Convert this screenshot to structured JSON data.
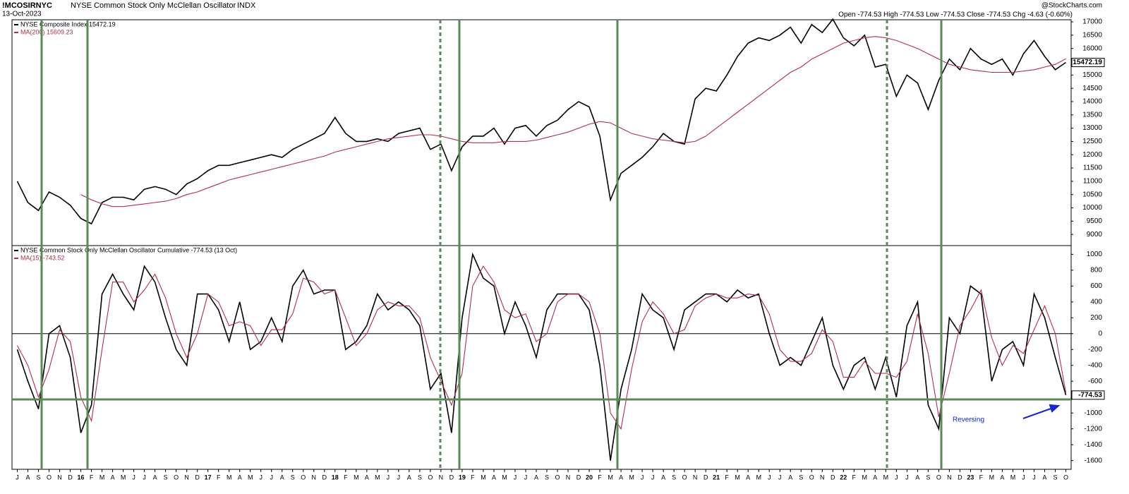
{
  "header": {
    "symbol": "!MCOSIRNYC",
    "name": "NYSE Common Stock Only McClellan Oscillator",
    "exchange": "INDX",
    "date": "13-Oct-2023",
    "source": "@StockCharts.com",
    "quote": "Open -774.53 High -774.53 Low -774.53 Close -774.53 Chg -4.63 (-0.60%)"
  },
  "chart_data": [
    {
      "type": "line",
      "series": [
        {
          "name": "NYSE Composite Index 15472.19",
          "color": "#000000",
          "last_value_label": "15472.19",
          "values": [
            11000,
            10200,
            9900,
            10600,
            10400,
            10100,
            9600,
            9400,
            10200,
            10400,
            10400,
            10300,
            10700,
            10800,
            10700,
            10500,
            10900,
            11100,
            11400,
            11600,
            11600,
            11700,
            11800,
            11900,
            12000,
            11900,
            12200,
            12400,
            12600,
            12800,
            13400,
            12800,
            12500,
            12500,
            12600,
            12500,
            12800,
            12900,
            13000,
            12200,
            12400,
            11400,
            12300,
            12700,
            12700,
            13000,
            12400,
            13000,
            13100,
            12700,
            13100,
            13300,
            13700,
            14000,
            13800,
            12700,
            10300,
            11300,
            11600,
            11900,
            12300,
            12800,
            12500,
            12400,
            14100,
            14500,
            14400,
            15000,
            15700,
            16200,
            16400,
            16300,
            16500,
            16800,
            16200,
            16900,
            16600,
            17100,
            16400,
            16100,
            16500,
            15300,
            15400,
            14200,
            15000,
            14700,
            13700,
            14800,
            15600,
            15200,
            16000,
            15600,
            15400,
            15600,
            15000,
            15800,
            16300,
            15700,
            15200,
            15472.19
          ]
        },
        {
          "name": "MA(200) 15609.23",
          "color": "#b0304a",
          "values": [
            null,
            null,
            null,
            null,
            null,
            null,
            10500,
            10300,
            10150,
            10050,
            10050,
            10100,
            10150,
            10200,
            10250,
            10350,
            10500,
            10600,
            10750,
            10900,
            11050,
            11150,
            11250,
            11350,
            11450,
            11550,
            11650,
            11750,
            11850,
            11950,
            12100,
            12200,
            12300,
            12400,
            12500,
            12600,
            12650,
            12700,
            12750,
            12750,
            12700,
            12600,
            12500,
            12450,
            12450,
            12450,
            12500,
            12500,
            12500,
            12550,
            12650,
            12750,
            12850,
            13000,
            13150,
            13250,
            13200,
            13000,
            12800,
            12700,
            12600,
            12550,
            12500,
            12450,
            12500,
            12700,
            13000,
            13300,
            13600,
            13900,
            14200,
            14500,
            14800,
            15100,
            15300,
            15600,
            15800,
            16000,
            16200,
            16300,
            16400,
            16450,
            16400,
            16300,
            16150,
            16000,
            15800,
            15600,
            15400,
            15300,
            15200,
            15150,
            15100,
            15100,
            15100,
            15150,
            15200,
            15300,
            15400,
            15609.23
          ]
        }
      ],
      "ylim": [
        8580,
        17080
      ],
      "yticks": [
        9000,
        9500,
        10000,
        10500,
        11000,
        11500,
        12000,
        12500,
        13000,
        13500,
        14000,
        14500,
        15000,
        15500,
        16000,
        16500,
        17000
      ]
    },
    {
      "type": "line",
      "categories": [
        "J",
        "A",
        "S",
        "O",
        "N",
        "D",
        "16",
        "F",
        "M",
        "A",
        "M",
        "J",
        "J",
        "A",
        "S",
        "O",
        "N",
        "D",
        "17",
        "F",
        "M",
        "A",
        "M",
        "J",
        "J",
        "A",
        "S",
        "O",
        "N",
        "D",
        "18",
        "F",
        "M",
        "A",
        "M",
        "J",
        "J",
        "A",
        "S",
        "O",
        "N",
        "D",
        "19",
        "F",
        "M",
        "A",
        "M",
        "J",
        "J",
        "A",
        "S",
        "O",
        "N",
        "D",
        "20",
        "F",
        "M",
        "A",
        "M",
        "J",
        "J",
        "A",
        "S",
        "O",
        "N",
        "D",
        "21",
        "F",
        "M",
        "A",
        "M",
        "J",
        "J",
        "A",
        "S",
        "O",
        "N",
        "D",
        "22",
        "F",
        "M",
        "A",
        "M",
        "J",
        "J",
        "A",
        "S",
        "O",
        "N",
        "D",
        "23",
        "F",
        "M",
        "A",
        "M",
        "J",
        "J",
        "A",
        "S",
        "O"
      ],
      "series": [
        {
          "name": "NYSE Common Stock Only McClellan Oscillator Cumulative -774.53 (13 Oct)",
          "color": "#000000",
          "last_value_label": "-774.53",
          "values": [
            -200,
            -600,
            -950,
            0,
            100,
            -300,
            -1250,
            -900,
            500,
            750,
            500,
            300,
            850,
            650,
            200,
            -200,
            -400,
            500,
            500,
            300,
            -100,
            400,
            -200,
            -100,
            200,
            -100,
            600,
            800,
            500,
            550,
            550,
            -200,
            -100,
            100,
            500,
            300,
            400,
            300,
            100,
            -700,
            -500,
            -1250,
            200,
            1000,
            700,
            600,
            0,
            400,
            100,
            -300,
            300,
            500,
            500,
            500,
            300,
            -400,
            -1600,
            -700,
            -200,
            500,
            300,
            200,
            -200,
            300,
            400,
            500,
            500,
            400,
            550,
            450,
            500,
            0,
            -400,
            -300,
            -400,
            -100,
            200,
            -400,
            -700,
            -400,
            -300,
            -700,
            -300,
            -800,
            100,
            400,
            -900,
            -1200,
            200,
            0,
            600,
            500,
            -600,
            -200,
            -100,
            -400,
            500,
            200,
            -300,
            -774.53
          ]
        },
        {
          "name": "MA(15) -743.52",
          "color": "#b0304a",
          "values": [
            -150,
            -400,
            -800,
            -450,
            50,
            -100,
            -800,
            -1100,
            -200,
            650,
            650,
            400,
            550,
            750,
            450,
            0,
            -300,
            0,
            500,
            400,
            100,
            150,
            100,
            -150,
            50,
            50,
            250,
            700,
            650,
            500,
            550,
            200,
            -150,
            0,
            300,
            400,
            350,
            350,
            200,
            -300,
            -600,
            -900,
            -500,
            600,
            850,
            650,
            300,
            200,
            250,
            -100,
            0,
            400,
            500,
            500,
            400,
            0,
            -1000,
            -1200,
            -450,
            150,
            400,
            250,
            0,
            50,
            350,
            450,
            500,
            450,
            450,
            500,
            480,
            250,
            -200,
            -350,
            -350,
            -250,
            50,
            -100,
            -550,
            -550,
            -350,
            -500,
            -500,
            -550,
            -350,
            250,
            -250,
            -1050,
            -500,
            100,
            300,
            550,
            -50,
            -400,
            -150,
            -250,
            50,
            350,
            0,
            -743.52
          ]
        }
      ],
      "ylim": [
        -1710,
        1110
      ],
      "yticks": [
        -1600,
        -1400,
        -1200,
        -1000,
        -800,
        -600,
        -400,
        -200,
        0,
        200,
        400,
        600,
        800,
        1000
      ],
      "zero_line": true,
      "annotation": "Reversing"
    }
  ]
}
